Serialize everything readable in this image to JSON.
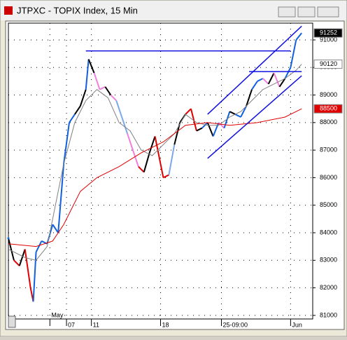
{
  "window_title": "JTPXC - TOPIX Index, 15 Min",
  "chart_data": {
    "type": "line",
    "xlim": [
      0,
      110
    ],
    "ylim": [
      80870,
      91610
    ],
    "yticks": [
      81000,
      82000,
      83000,
      84000,
      85000,
      86000,
      87000,
      88000,
      89000,
      90000,
      91000
    ],
    "xticks": [
      {
        "value": 15,
        "label": "May"
      },
      {
        "value": 21,
        "label": "07"
      },
      {
        "value": 30,
        "label": "11"
      },
      {
        "value": 55,
        "label": "18"
      },
      {
        "value": 77,
        "label": "25-09:00"
      },
      {
        "value": 102,
        "label": "Jun"
      }
    ],
    "grid": true,
    "series": [
      {
        "role": "price",
        "x": [
          0,
          2,
          4,
          6,
          8,
          9,
          10,
          12,
          14,
          16,
          18,
          20,
          22,
          24,
          26,
          28,
          29,
          31,
          33,
          35,
          37,
          39,
          41,
          43,
          45,
          47,
          49,
          51,
          53,
          55,
          56,
          58,
          60,
          62,
          64,
          66,
          68,
          70,
          72,
          74,
          76,
          78,
          80,
          82,
          84,
          86,
          88,
          90,
          92,
          94,
          96,
          98,
          100,
          102,
          104,
          106
        ],
        "values": [
          83800,
          83000,
          82800,
          83400,
          82000,
          81500,
          83300,
          83700,
          83600,
          84300,
          84000,
          86500,
          88000,
          88300,
          88600,
          89200,
          90300,
          89800,
          89200,
          89300,
          89000,
          88800,
          88200,
          87600,
          87000,
          86400,
          86200,
          86900,
          87500,
          86500,
          86000,
          86100,
          87200,
          88000,
          88300,
          88500,
          87700,
          87800,
          88000,
          87500,
          88000,
          87800,
          88400,
          88300,
          88200,
          88600,
          89200,
          89500,
          89600,
          89400,
          89800,
          89300,
          89600,
          90000,
          91000,
          91252
        ],
        "colors": [
          "#1060e0",
          "#000000",
          "#e00000",
          "#000000",
          "#e00000",
          "#e00000",
          "#1060e0",
          "#1060e0",
          "#1060e0",
          "#1060e0",
          "#1060e0",
          "#1060e0",
          "#1060e0",
          "#1060e0",
          "#000000",
          "#000000",
          "#1060e0",
          "#000000",
          "#f080e0",
          "#f080e0",
          "#000000",
          "#f080e0",
          "#7aa8e8",
          "#7aa8e8",
          "#f080e0",
          "#f080e0",
          "#e00000",
          "#000000",
          "#000000",
          "#e00000",
          "#e00000",
          "#e00000",
          "#7aa8e8",
          "#000000",
          "#000000",
          "#e00000",
          "#e00000",
          "#000000",
          "#1060e0",
          "#000000",
          "#1060e0",
          "#f080e0",
          "#1060e0",
          "#000000",
          "#1060e0",
          "#1060e0",
          "#000000",
          "#1060e0",
          "#1060e0",
          "#f080e0",
          "#000000",
          "#f080e0",
          "#000000",
          "#1060e0",
          "#1060e0",
          "#1060e0"
        ]
      },
      {
        "role": "ma",
        "color": "#808080",
        "x": [
          0,
          6,
          10,
          14,
          18,
          20,
          24,
          28,
          32,
          36,
          40,
          44,
          48,
          52,
          56,
          60,
          64,
          68,
          72,
          76,
          80,
          84,
          88,
          92,
          96,
          100,
          104,
          106
        ],
        "values": [
          83400,
          83100,
          83000,
          83500,
          85500,
          86500,
          88000,
          88800,
          89200,
          88900,
          88000,
          87700,
          87000,
          86800,
          87200,
          87600,
          88300,
          88000,
          87900,
          87900,
          88200,
          88400,
          88800,
          89200,
          89400,
          89600,
          89900,
          90120
        ]
      },
      {
        "role": "ma",
        "color": "#e00000",
        "x": [
          0,
          10,
          16,
          20,
          26,
          32,
          40,
          48,
          56,
          64,
          72,
          80,
          90,
          100,
          106
        ],
        "values": [
          83600,
          83500,
          83700,
          84300,
          85500,
          86000,
          86400,
          86900,
          87300,
          87900,
          88000,
          87900,
          88000,
          88200,
          88500
        ]
      },
      {
        "role": "drawing",
        "color": "#1010e0",
        "x": [
          28,
          102
        ],
        "values": [
          90600,
          90600
        ]
      },
      {
        "role": "drawing",
        "color": "#1010e0",
        "x": [
          87,
          106
        ],
        "values": [
          89850,
          89850
        ]
      },
      {
        "role": "drawing",
        "color": "#1010e0",
        "x": [
          72,
          106
        ],
        "values": [
          88300,
          91500
        ]
      },
      {
        "role": "drawing",
        "color": "#1010e0",
        "x": [
          72,
          106
        ],
        "values": [
          86700,
          89700
        ]
      }
    ],
    "last_values": [
      {
        "value": 91252,
        "color": "#000000",
        "text_color": "#ffffff"
      },
      {
        "value": 90120,
        "color": "#ffffff",
        "text_color": "#000000"
      },
      {
        "value": 88500,
        "color": "#e00000",
        "text_color": "#ffffff"
      }
    ]
  }
}
